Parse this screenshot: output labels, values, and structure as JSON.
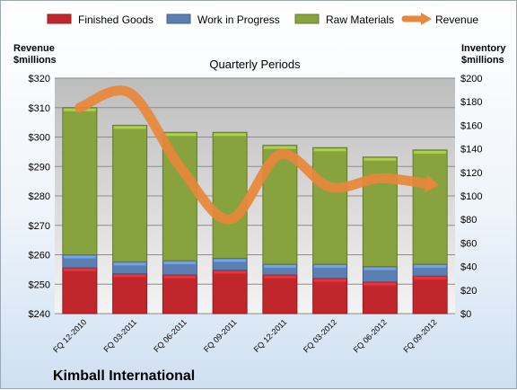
{
  "chart_data": {
    "type": "bar",
    "stacked": true,
    "title": "Quarterly Periods",
    "company": "Kimball International",
    "left_axis_label": [
      "Revenue",
      "$millions"
    ],
    "right_axis_label": [
      "Inventory",
      "$millions"
    ],
    "categories": [
      "FQ 12-2010",
      "FQ 03-2011",
      "FQ 06-2011",
      "FQ 09-2011",
      "FQ 12-2011",
      "FQ 03-2012",
      "FQ 06-2012",
      "FQ 09-2012"
    ],
    "left_axis": {
      "min": 240,
      "max": 320,
      "step": 10,
      "prefix": "$"
    },
    "right_axis": {
      "min": 0,
      "max": 200,
      "step": 20,
      "prefix": "$"
    },
    "legend_position": "top",
    "grid": true,
    "series": [
      {
        "name": "Finished Goods",
        "axis": "right",
        "kind": "bar",
        "color": "#c0262c",
        "values": [
          39,
          34,
          33,
          37,
          33,
          30,
          27,
          32
        ]
      },
      {
        "name": "Work in Progress",
        "axis": "right",
        "kind": "bar",
        "color": "#5b7fb3",
        "values": [
          11,
          10,
          12,
          10,
          9,
          12,
          13,
          10
        ]
      },
      {
        "name": "Raw Materials",
        "axis": "right",
        "kind": "bar",
        "color": "#86a33d",
        "values": [
          125,
          116,
          109,
          107,
          101,
          99,
          93,
          97
        ]
      },
      {
        "name": "Revenue",
        "axis": "left",
        "kind": "line",
        "color": "#e8873a",
        "values": [
          310,
          315,
          290,
          272,
          294,
          283,
          286,
          284
        ]
      }
    ]
  }
}
